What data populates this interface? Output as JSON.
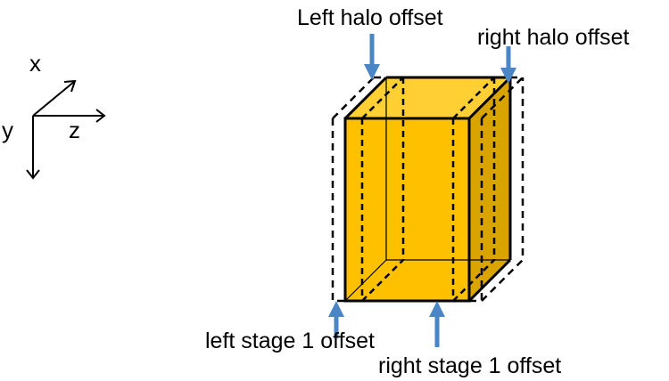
{
  "axes": {
    "x_label": "x",
    "y_label": "y",
    "z_label": "z"
  },
  "labels": {
    "left_halo": "Left halo offset",
    "right_halo": "right halo offset",
    "left_stage": "left stage 1 offset",
    "right_stage": "right stage 1 offset"
  },
  "colors": {
    "box_front": "#ffc000",
    "box_top": "#ffcf33",
    "box_side": "#d9a300",
    "arrow": "#4a86c5",
    "outline": "#000000"
  }
}
